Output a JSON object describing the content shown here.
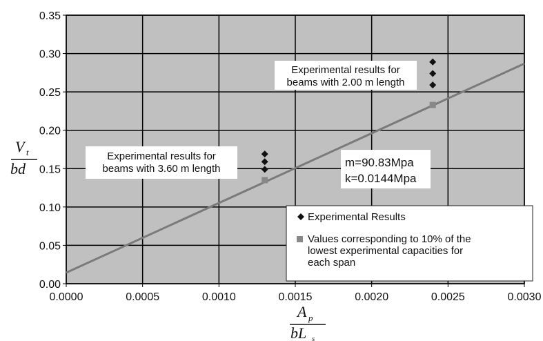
{
  "chart_data": {
    "type": "scatter",
    "xlim": [
      0,
      0.003
    ],
    "ylim": [
      0,
      0.35
    ],
    "x_ticks": [
      "0.0000",
      "0.0005",
      "0.0010",
      "0.0015",
      "0.0020",
      "0.0025",
      "0.0030"
    ],
    "y_ticks": [
      "0.00",
      "0.05",
      "0.10",
      "0.15",
      "0.20",
      "0.25",
      "0.30",
      "0.35"
    ],
    "grid": true,
    "xlabel": {
      "numerator": "A",
      "numerator_sub": "p",
      "denominator": "bL",
      "denominator_sub": "s"
    },
    "ylabel": {
      "numerator": "V",
      "numerator_sub": "t",
      "denominator": "bd"
    },
    "series": [
      {
        "name": "Experimental Results",
        "marker": "diamond",
        "color": "#111111",
        "points": [
          [
            0.0013,
            0.149
          ],
          [
            0.0013,
            0.159
          ],
          [
            0.0013,
            0.169
          ],
          [
            0.0024,
            0.259
          ],
          [
            0.0024,
            0.274
          ],
          [
            0.0024,
            0.289
          ]
        ]
      },
      {
        "name": "Values corresponding to 10% of the lowest experimental capacities for each span",
        "marker": "square",
        "color": "#888888",
        "points": [
          [
            0.0013,
            0.135
          ],
          [
            0.0024,
            0.233
          ]
        ]
      }
    ],
    "fit_line": {
      "color": "#7a7a7a",
      "points": [
        [
          0,
          0.0144
        ],
        [
          0.003,
          0.2869
        ]
      ]
    },
    "annotations": [
      {
        "lines": [
          "Experimental results for",
          "beams with 2.00 m length"
        ]
      },
      {
        "lines": [
          "Experimental results for",
          "beams with 3.60 m length"
        ]
      },
      {
        "lines": [
          "m=90.83Mpa",
          "k=0.0144Mpa"
        ]
      }
    ],
    "legend": {
      "position": "bottom-right",
      "entries": [
        {
          "marker": "diamond",
          "lines": [
            "Experimental Results"
          ]
        },
        {
          "marker": "square",
          "lines": [
            "Values corresponding to 10% of the",
            "lowest experimental capacities for",
            "each span"
          ]
        }
      ]
    },
    "colors": {
      "plot_bg": "#c0c0c0",
      "grid": "#000000",
      "page_bg": "#ffffff"
    }
  }
}
